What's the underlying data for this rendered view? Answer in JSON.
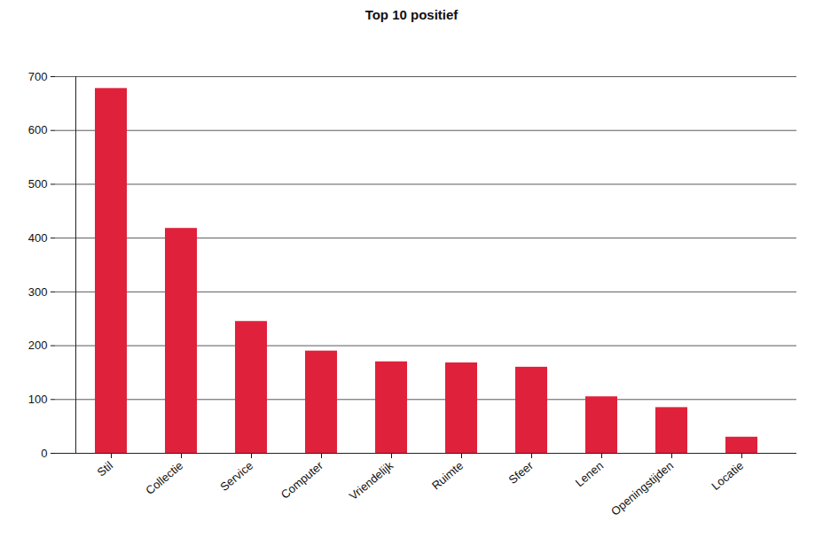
{
  "chart_data": {
    "type": "bar",
    "title": "Top 10 positief",
    "categories": [
      "Stil",
      "Collectie",
      "Service",
      "Computer",
      "Vriendelijk",
      "Ruimte",
      "Sfeer",
      "Lenen",
      "Openingstijden",
      "Locatie"
    ],
    "values": [
      678,
      418,
      245,
      190,
      170,
      168,
      160,
      105,
      85,
      30
    ],
    "color": "#e0213b",
    "ylim": [
      0,
      700
    ],
    "yticks": [
      0,
      100,
      200,
      300,
      400,
      500,
      600,
      700
    ],
    "grid": true
  }
}
